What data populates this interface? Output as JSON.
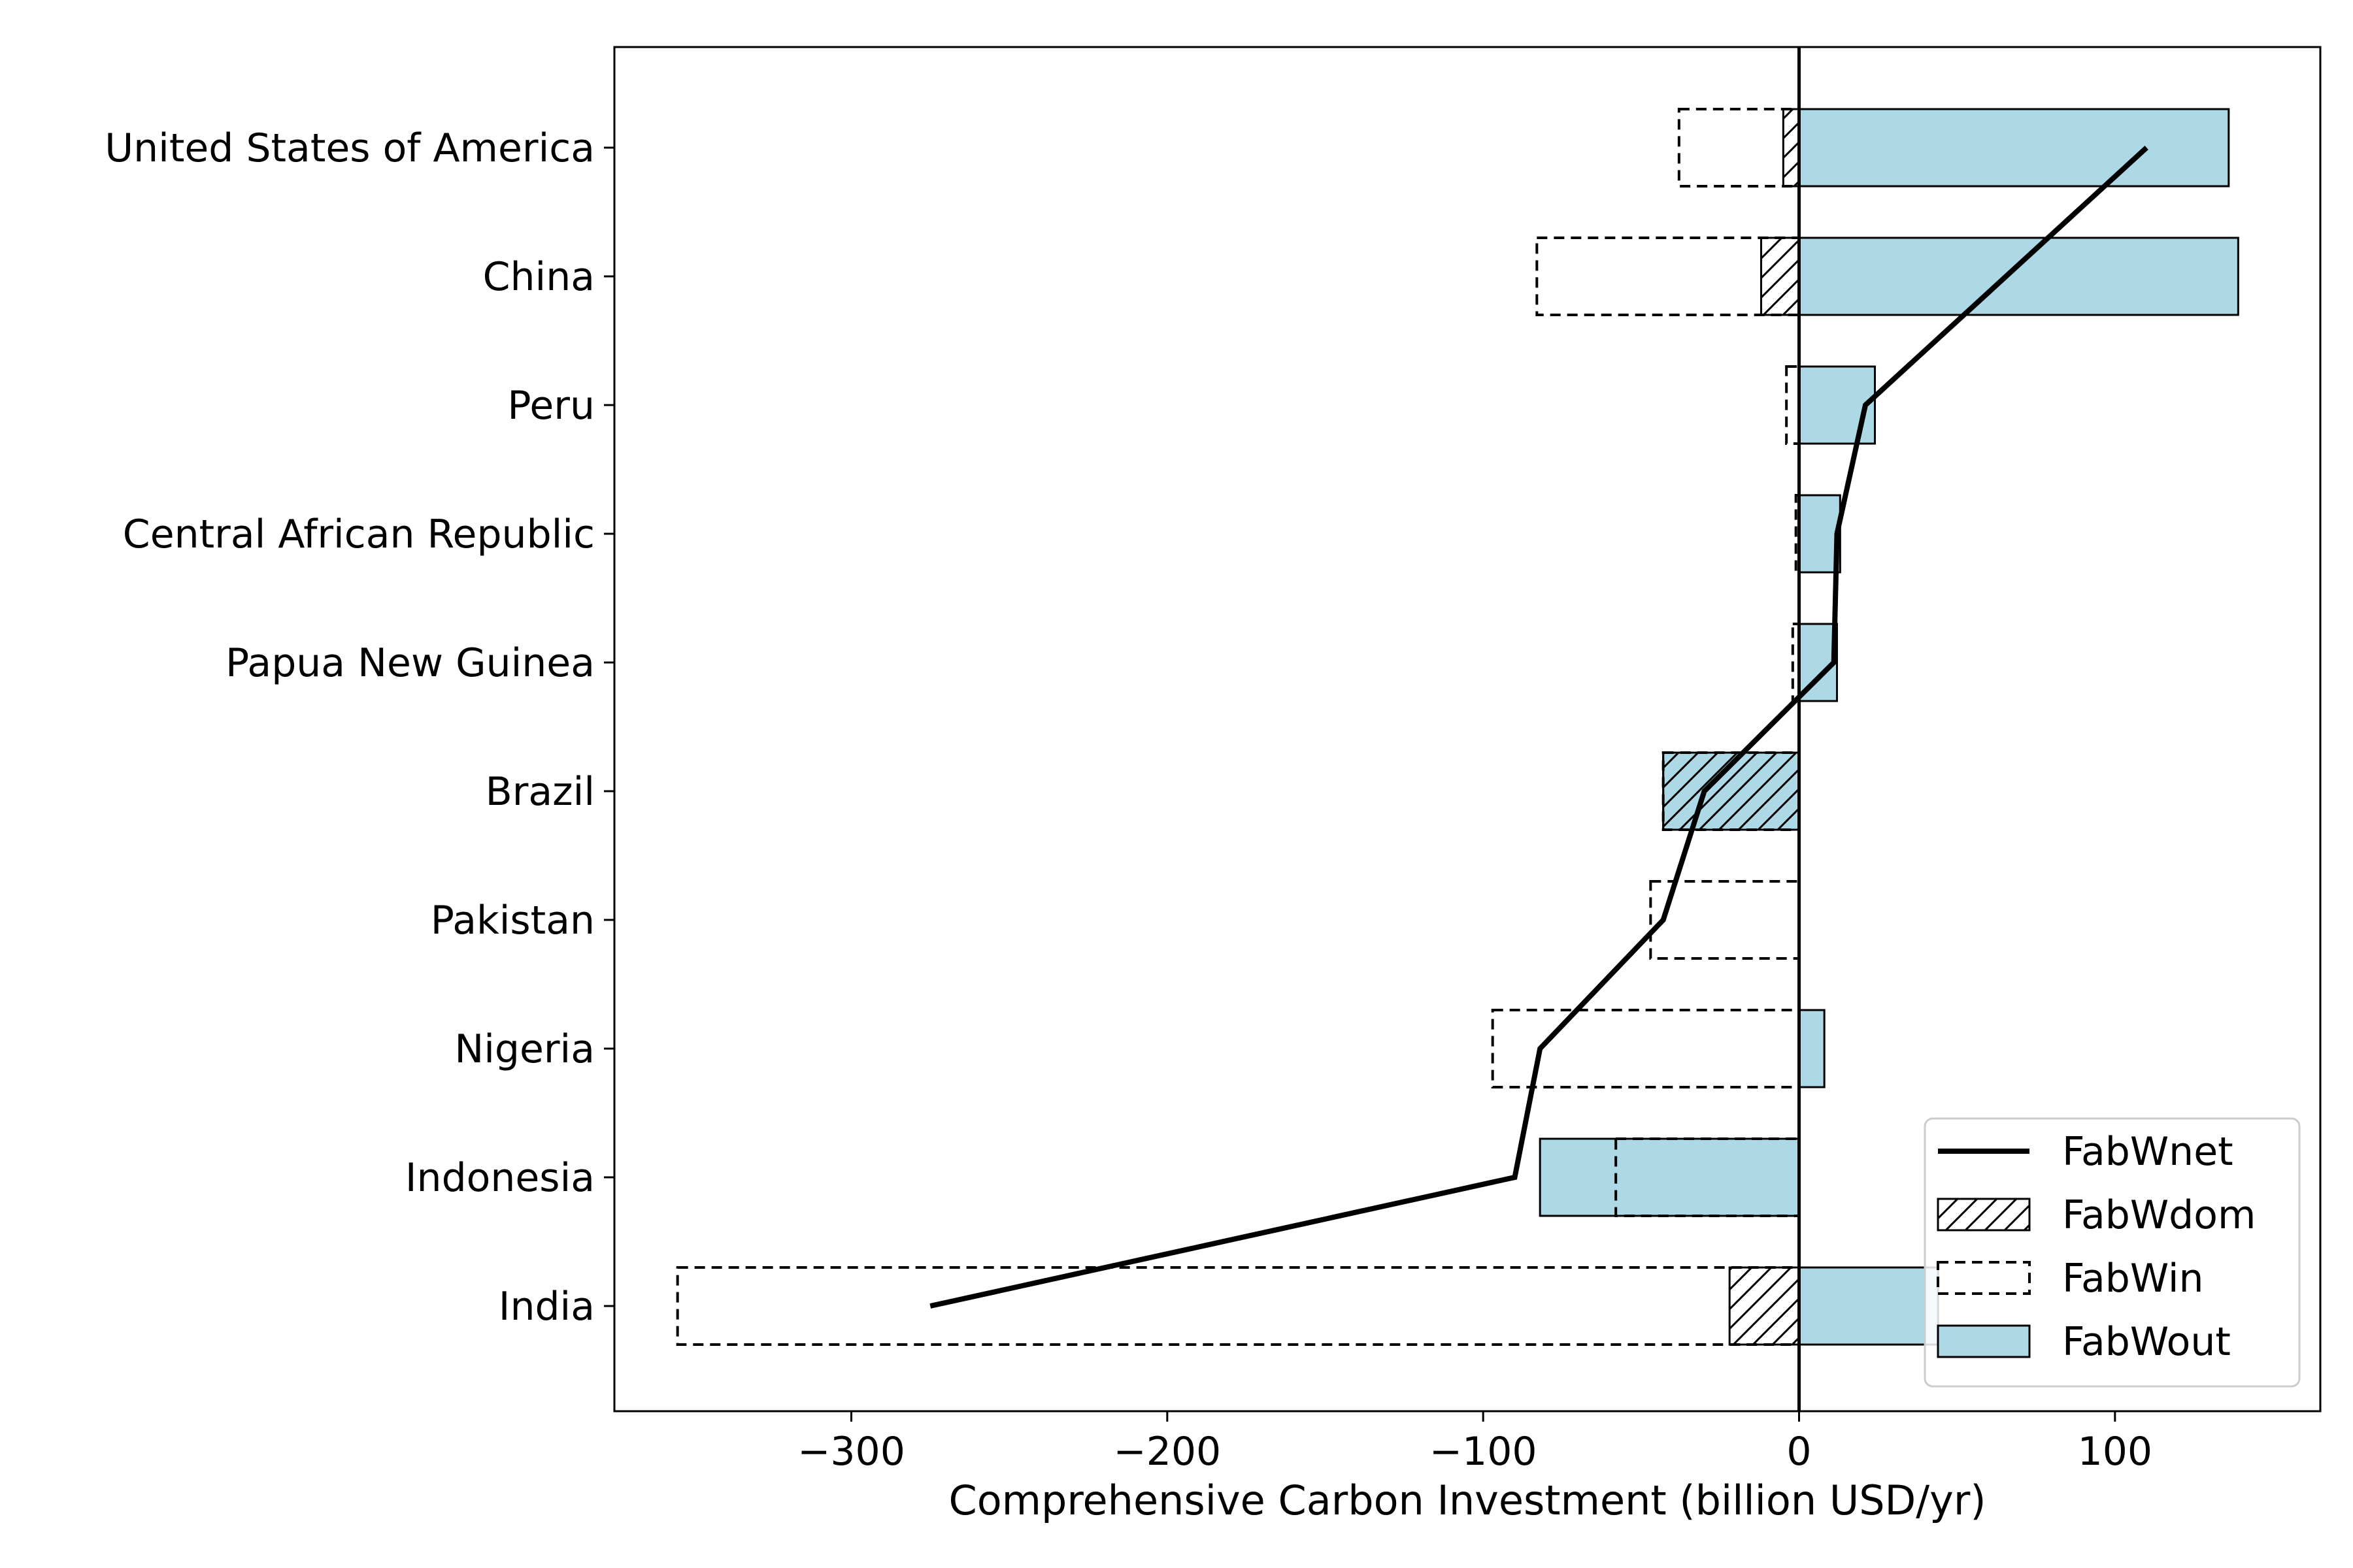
{
  "chart_data": {
    "type": "bar",
    "orientation": "horizontal",
    "title": "",
    "xlabel": "Comprehensive Carbon Investment (billion USD/yr)",
    "ylabel": "",
    "xlim": [
      -375,
      165
    ],
    "xticks": [
      -300,
      -200,
      -100,
      0,
      100
    ],
    "xtick_labels": [
      "−300",
      "−200",
      "−100",
      "0",
      "100"
    ],
    "categories": [
      "United States of America",
      "China",
      "Peru",
      "Central African Republic",
      "Papua New Guinea",
      "Brazil",
      "Pakistan",
      "Nigeria",
      "Indonesia",
      "India"
    ],
    "series": [
      {
        "name": "FabWnet",
        "kind": "line",
        "values": [
          110,
          null,
          21,
          12,
          11,
          -30,
          -43,
          -82,
          -90,
          -275
        ]
      },
      {
        "name": "FabWdom",
        "kind": "bar",
        "style": "hatched",
        "values": [
          -5,
          -12,
          0,
          0,
          0,
          -43,
          0,
          0,
          0,
          -22
        ]
      },
      {
        "name": "FabWin",
        "kind": "bar",
        "style": "dashed-outline",
        "values": [
          -38,
          -83,
          -4,
          -1,
          -2,
          -43,
          -47,
          -97,
          -58,
          -355
        ]
      },
      {
        "name": "FabWout",
        "kind": "bar",
        "style": "filled",
        "values": [
          136,
          139,
          24,
          13,
          12,
          -43,
          0,
          8,
          -82,
          44
        ]
      }
    ],
    "bar_color": "#add8e6",
    "line_color": "#000000",
    "legend_position": "lower right",
    "grid": false
  }
}
